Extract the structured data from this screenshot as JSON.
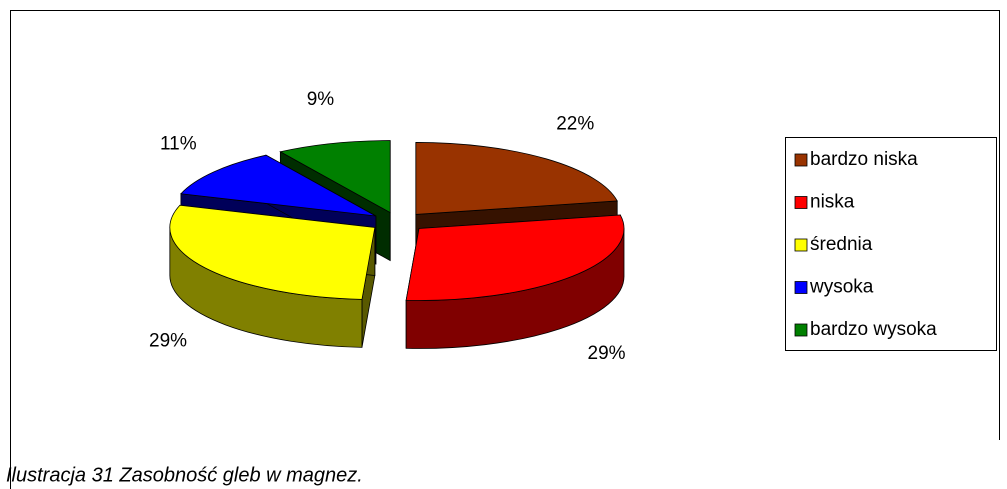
{
  "chart_data": {
    "type": "pie3d",
    "categories": [
      "bardzo niska",
      "niska",
      "średnia",
      "wysoka",
      "bardzo wysoka"
    ],
    "values": [
      22,
      29,
      29,
      11,
      9
    ],
    "value_labels": [
      "22%",
      "29%",
      "29%",
      "11%",
      "9%"
    ],
    "colors": [
      "#993300",
      "#ff0000",
      "#ffff00",
      "#0000ff",
      "#008000"
    ],
    "legend": "right"
  },
  "caption": "Ilustracja 31 Zasobność gleb w magnez."
}
